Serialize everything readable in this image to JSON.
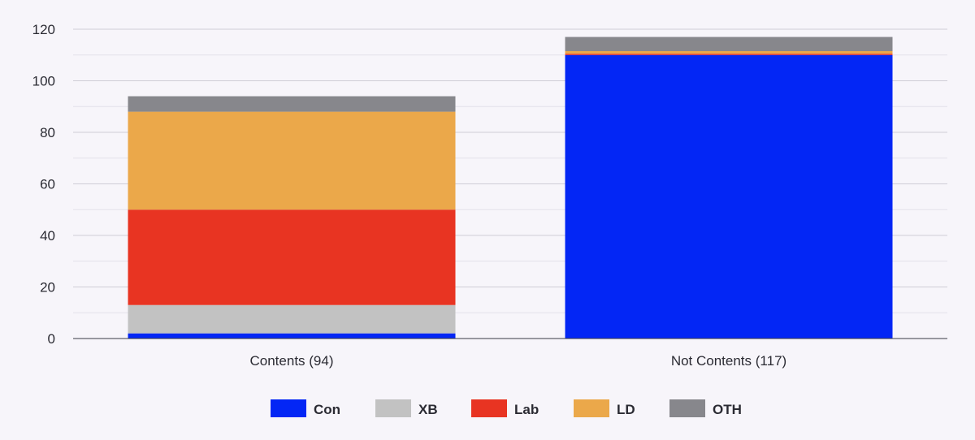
{
  "chart_data": {
    "type": "bar",
    "stacked": true,
    "categories": [
      "Contents (94)",
      "Not Contents (117)"
    ],
    "series": [
      {
        "name": "Con",
        "color": "#0326f5",
        "values": [
          2,
          110
        ]
      },
      {
        "name": "XB",
        "color": "#c2c2c2",
        "values": [
          11,
          0
        ]
      },
      {
        "name": "Lab",
        "color": "#e83422",
        "values": [
          37,
          0.5
        ]
      },
      {
        "name": "LD",
        "color": "#eba84a",
        "values": [
          38,
          1
        ]
      },
      {
        "name": "OTH",
        "color": "#87878c",
        "values": [
          6,
          5.5
        ]
      }
    ],
    "ylim": [
      0,
      120
    ],
    "yticks": [
      0,
      20,
      40,
      60,
      80,
      100,
      120
    ],
    "title": "",
    "xlabel": "",
    "ylabel": "",
    "grid": true,
    "legend": "bottom-center"
  }
}
